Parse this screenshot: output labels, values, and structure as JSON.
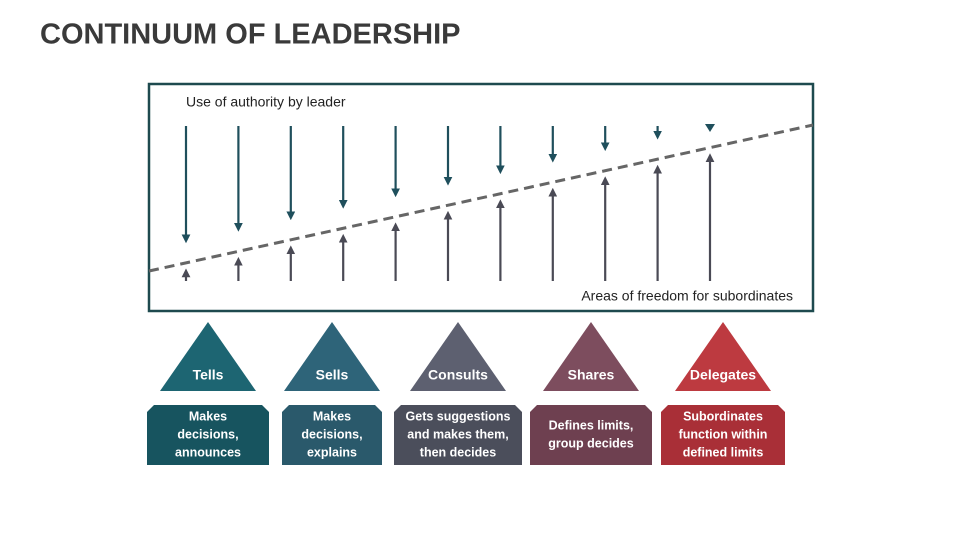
{
  "header": {
    "title": "CONTINUUM OF LEADERSHIP"
  },
  "diagram": {
    "top_label": "Use of authority by leader",
    "bottom_label": "Areas of freedom for subordinates"
  },
  "styles": [
    {
      "label": "Tells",
      "description": [
        "Makes",
        "decisions,",
        "announces"
      ]
    },
    {
      "label": "Sells",
      "description": [
        "Makes",
        "decisions,",
        "explains"
      ]
    },
    {
      "label": "Consults",
      "description": [
        "Gets suggestions",
        "and makes them,",
        "then decides"
      ]
    },
    {
      "label": "Shares",
      "description": [
        "Defines limits,",
        "group decides"
      ]
    },
    {
      "label": "Delegates",
      "description": [
        "Subordinates",
        "function within",
        "defined limits"
      ]
    }
  ]
}
